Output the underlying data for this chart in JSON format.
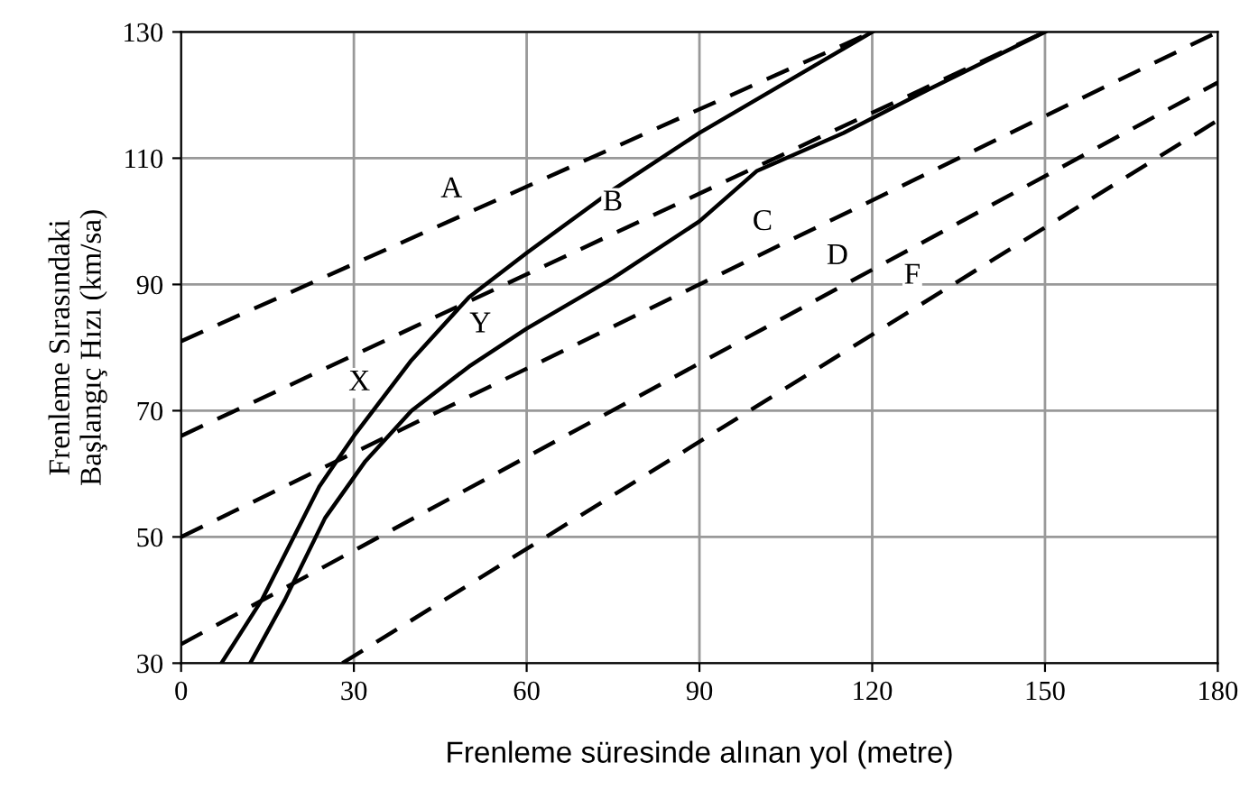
{
  "chart_data": {
    "type": "line",
    "xlabel": "Frenleme süresinde alınan yol (metre)",
    "ylabel": "Frenleme Sırasındaki\nBaşlangıç Hızı (km/sa)",
    "xlim": [
      0,
      180
    ],
    "ylim": [
      30,
      130
    ],
    "xticks": [
      0,
      30,
      60,
      90,
      120,
      150,
      180
    ],
    "yticks": [
      30,
      50,
      70,
      90,
      110,
      130
    ],
    "grid": true,
    "legend": false,
    "marker": "none",
    "series": [
      {
        "color": "#000000",
        "line_style": "dashed",
        "x": [
          0,
          120
        ],
        "values": [
          81,
          130
        ]
      },
      {
        "color": "#000000",
        "line_style": "dashed",
        "x": [
          0,
          150
        ],
        "values": [
          66,
          130
        ]
      },
      {
        "color": "#000000",
        "line_style": "dashed",
        "x": [
          0,
          180
        ],
        "values": [
          50,
          130
        ]
      },
      {
        "color": "#000000",
        "line_style": "dashed",
        "x": [
          0,
          180
        ],
        "values": [
          33,
          122
        ]
      },
      {
        "color": "#000000",
        "line_style": "dashed",
        "x": [
          28,
          180
        ],
        "values": [
          30,
          116
        ]
      },
      {
        "color": "#000000",
        "line_style": "solid",
        "x": [
          7,
          14,
          24,
          30,
          40,
          50,
          60,
          75,
          90,
          105,
          120
        ],
        "values": [
          30,
          40,
          58,
          66,
          78,
          88,
          95,
          105,
          114,
          122,
          130
        ]
      },
      {
        "color": "#000000",
        "line_style": "solid",
        "x": [
          12,
          18,
          25,
          32,
          40,
          50,
          60,
          75,
          90,
          100,
          115,
          130,
          150
        ],
        "values": [
          30,
          40,
          53,
          62,
          70,
          77,
          83,
          91,
          100,
          108,
          114,
          121,
          130
        ]
      }
    ],
    "annotations": [
      {
        "text": "A",
        "x": 50,
        "y": 101.4
      },
      {
        "text": "B",
        "x": 78,
        "y": 99.3
      },
      {
        "text": "C",
        "x": 104,
        "y": 96.2
      },
      {
        "text": "D",
        "x": 117,
        "y": 90.8
      },
      {
        "text": "F",
        "x": 130,
        "y": 87.7
      },
      {
        "text": "X",
        "x": 34,
        "y": 70.8
      },
      {
        "text": "Y",
        "x": 55,
        "y": 80
      }
    ]
  }
}
